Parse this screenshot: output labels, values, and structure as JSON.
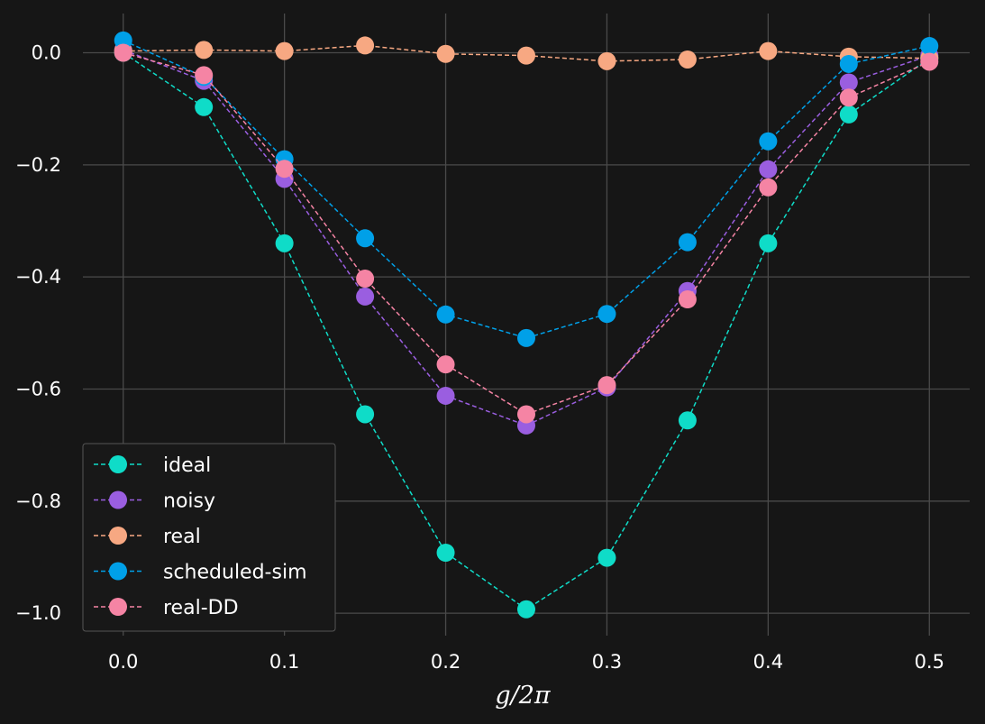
{
  "chart_data": {
    "type": "line",
    "x": [
      0.0,
      0.05,
      0.1,
      0.15,
      0.2,
      0.25,
      0.3,
      0.35,
      0.4,
      0.45,
      0.5
    ],
    "xlabel": "g/2π",
    "ylabel": "",
    "title": "",
    "xlim": [
      -0.025,
      0.525
    ],
    "ylim": [
      -1.04,
      0.07
    ],
    "xticks": [
      0.0,
      0.1,
      0.2,
      0.3,
      0.4,
      0.5
    ],
    "xtick_labels": [
      "0.0",
      "0.1",
      "0.2",
      "0.3",
      "0.4",
      "0.5"
    ],
    "yticks": [
      0.0,
      -0.2,
      -0.4,
      -0.6,
      -0.8,
      -1.0
    ],
    "ytick_labels": [
      "0.0",
      "−0.2",
      "−0.4",
      "−0.6",
      "−0.8",
      "−1.0"
    ],
    "grid": true,
    "legend_position": "lower-left",
    "series": [
      {
        "name": "ideal",
        "color": "#0fdcc8",
        "values": [
          0.0,
          -0.097,
          -0.34,
          -0.645,
          -0.892,
          -0.993,
          -0.901,
          -0.656,
          -0.34,
          -0.11,
          -0.01
        ]
      },
      {
        "name": "noisy",
        "color": "#9a5ee0",
        "values": [
          0.005,
          -0.05,
          -0.225,
          -0.435,
          -0.612,
          -0.665,
          -0.597,
          -0.425,
          -0.208,
          -0.053,
          -0.005
        ]
      },
      {
        "name": "real",
        "color": "#f7a882",
        "values": [
          0.003,
          0.005,
          0.003,
          0.013,
          -0.002,
          -0.005,
          -0.015,
          -0.012,
          0.003,
          -0.007,
          -0.01
        ]
      },
      {
        "name": "scheduled-sim",
        "color": "#00a0e8",
        "values": [
          0.022,
          -0.043,
          -0.19,
          -0.331,
          -0.467,
          -0.509,
          -0.466,
          -0.338,
          -0.158,
          -0.02,
          0.012
        ]
      },
      {
        "name": "real-DD",
        "color": "#f584a4",
        "values": [
          0.0,
          -0.04,
          -0.207,
          -0.403,
          -0.556,
          -0.645,
          -0.593,
          -0.44,
          -0.24,
          -0.08,
          -0.016
        ]
      }
    ]
  }
}
